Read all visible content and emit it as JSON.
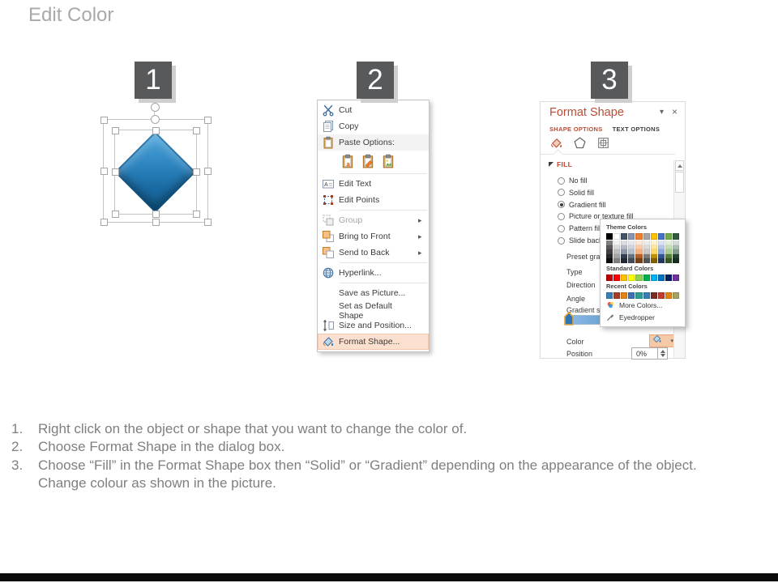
{
  "slide": {
    "title": "Edit Color",
    "badges": [
      "1",
      "2",
      "3"
    ]
  },
  "shape_preview": {
    "fill_light": "#55AADC",
    "fill_dark": "#0E5484"
  },
  "context_menu": {
    "items": [
      {
        "id": "cut",
        "label": "Cut",
        "icon": "scissors-icon"
      },
      {
        "id": "copy",
        "label": "Copy",
        "icon": "copy-icon"
      },
      {
        "id": "paste-options",
        "label": "Paste Options:",
        "icon": "paste-clipboard-icon",
        "shaded": true
      },
      {
        "id": "paste-buttons",
        "type": "icons-row",
        "buttons": [
          "paste-keep-source-icon",
          "paste-merge-formatting-icon",
          "paste-picture-icon"
        ],
        "separator_after": true
      },
      {
        "id": "edit-text",
        "label": "Edit Text",
        "icon": "edit-text-icon"
      },
      {
        "id": "edit-points",
        "label": "Edit Points",
        "icon": "edit-points-icon",
        "separator_after": true
      },
      {
        "id": "group",
        "label": "Group",
        "icon": "group-icon",
        "disabled": true,
        "submenu": true
      },
      {
        "id": "bring-to-front",
        "label": "Bring to Front",
        "icon": "bring-front-icon",
        "submenu": true
      },
      {
        "id": "send-to-back",
        "label": "Send to Back",
        "icon": "send-back-icon",
        "submenu": true,
        "separator_after": true
      },
      {
        "id": "hyperlink",
        "label": "Hyperlink...",
        "icon": "hyperlink-icon",
        "separator_after": true
      },
      {
        "id": "save-as-picture",
        "label": "Save as Picture...",
        "icon": ""
      },
      {
        "id": "set-default-shape",
        "label": "Set as Default Shape",
        "icon": ""
      },
      {
        "id": "size-position",
        "label": "Size and Position...",
        "icon": "size-position-icon"
      },
      {
        "id": "format-shape",
        "label": "Format Shape...",
        "icon": "format-shape-icon",
        "highlighted": true
      }
    ]
  },
  "format_shape_panel": {
    "title": "Format Shape",
    "collapse_glyph": "▾",
    "close_glyph": "×",
    "tabs": [
      {
        "label": "SHAPE OPTIONS",
        "active": true
      },
      {
        "label": "TEXT OPTIONS",
        "active": false
      }
    ],
    "section_label": "FILL",
    "fill_options": [
      {
        "label": "No fill",
        "selected": false
      },
      {
        "label": "Solid fill",
        "selected": false
      },
      {
        "label": "Gradient fill",
        "selected": true
      },
      {
        "label": "Picture or texture fill",
        "selected": false
      },
      {
        "label": "Pattern fill",
        "selected": false
      },
      {
        "label": "Slide background fill",
        "selected": false
      }
    ],
    "field_labels": [
      "Preset gradients",
      "Type",
      "Direction",
      "Angle",
      "Gradient stops"
    ],
    "color_row_label": "Color",
    "position_row": {
      "label": "Position",
      "value": "0%"
    }
  },
  "color_picker": {
    "theme_label": "Theme Colors",
    "theme_colors": [
      "#000000",
      "#FFFFFF",
      "#44546A",
      "#8496B0",
      "#ED7D31",
      "#A5A5A5",
      "#FFC000",
      "#4472C4",
      "#70AD47",
      "#2F5B3C"
    ],
    "standard_label": "Standard Colors",
    "standard_colors": [
      "#C00000",
      "#FF0000",
      "#FFC000",
      "#FFFF00",
      "#92D050",
      "#00B050",
      "#00B0F0",
      "#0070C0",
      "#002060",
      "#7030A0"
    ],
    "recent_label": "Recent Colors",
    "recent_colors": [
      "#3A7CB8",
      "#A33E29",
      "#E08214",
      "#3E6FB0",
      "#2E9B8F",
      "#3A7CB8",
      "#7B2D26",
      "#C23B2E",
      "#E08214",
      "#A8A060"
    ],
    "more_colors_label": "More Colors...",
    "eyedropper_label": "Eyedropper"
  },
  "instructions": [
    {
      "number": "1.",
      "lines": [
        "Right click on the object or shape that you want to change the color of."
      ]
    },
    {
      "number": "2.",
      "lines": [
        "Choose Format Shape in the dialog box."
      ]
    },
    {
      "number": "3.",
      "lines": [
        "Choose “Fill” in the Format Shape box then  “Solid” or “Gradient” depending on the appearance of the object.",
        "Change colour as shown in the picture."
      ]
    }
  ]
}
